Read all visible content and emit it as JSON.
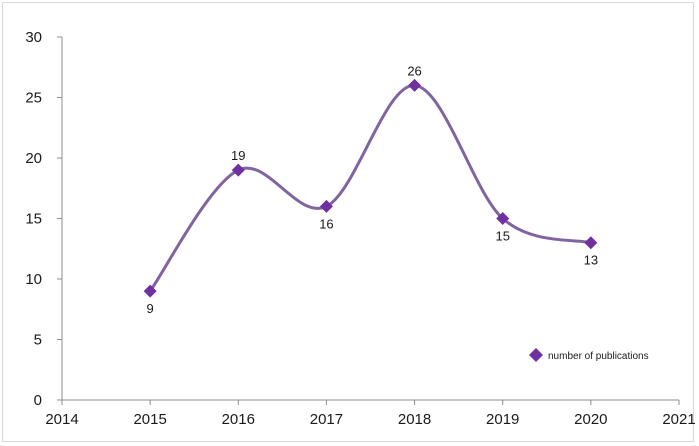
{
  "chart_data": {
    "type": "line",
    "title": "",
    "xlabel": "",
    "ylabel": "",
    "x": [
      2015,
      2016,
      2017,
      2018,
      2019,
      2020
    ],
    "series": [
      {
        "name": "number of publications",
        "values": [
          9,
          19,
          16,
          26,
          15,
          13
        ]
      }
    ],
    "xlim": [
      2014,
      2021
    ],
    "ylim": [
      0,
      30
    ],
    "x_ticks": [
      2014,
      2015,
      2016,
      2017,
      2018,
      2019,
      2020,
      2021
    ],
    "y_ticks": [
      0,
      5,
      10,
      15,
      20,
      25,
      30
    ],
    "data_labels": [
      "9",
      "19",
      "16",
      "26",
      "15",
      "13"
    ],
    "smooth": true,
    "marker": "diamond",
    "grid": false,
    "legend_position": "bottom-right",
    "colors": {
      "line": "#8064a2",
      "marker": "#7030a0",
      "axis": "#8c8c8c"
    }
  }
}
